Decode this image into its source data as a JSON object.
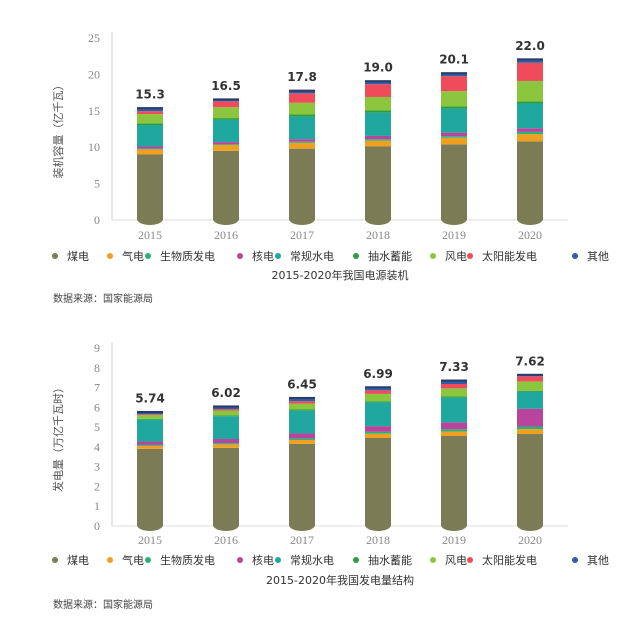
{
  "colors": {
    "煤电": "#7b7b55",
    "气电": "#f0a020",
    "生物质发电": "#27b27a",
    "核电": "#b8449e",
    "常规水电": "#1fa7a0",
    "抽水蓄能": "#2e9e3c",
    "风电": "#8cc63f",
    "太阳能发电": "#ef4b5a",
    "其他": "#2b5fa8"
  },
  "chart_data": [
    {
      "type": "bar",
      "stacked": true,
      "categories": [
        "2015",
        "2016",
        "2017",
        "2018",
        "2019",
        "2020"
      ],
      "ylabel": "装机容量（亿千瓦）",
      "ylim": [
        0,
        25
      ],
      "yticks": [
        0,
        5,
        10,
        15,
        20,
        25
      ],
      "subtitle": "2015-2020年我国电源装机",
      "totals": [
        "15.3",
        "16.5",
        "17.8",
        "19.0",
        "20.1",
        "22.0"
      ],
      "series": [
        {
          "name": "煤电",
          "values": [
            9.0,
            9.5,
            9.8,
            10.1,
            10.4,
            10.8
          ]
        },
        {
          "name": "气电",
          "values": [
            0.7,
            0.8,
            0.8,
            0.8,
            0.9,
            1.0
          ]
        },
        {
          "name": "生物质发电",
          "values": [
            0.1,
            0.1,
            0.15,
            0.2,
            0.2,
            0.3
          ]
        },
        {
          "name": "核电",
          "values": [
            0.3,
            0.3,
            0.35,
            0.45,
            0.5,
            0.5
          ]
        },
        {
          "name": "常规水电",
          "values": [
            2.95,
            3.05,
            3.1,
            3.2,
            3.3,
            3.4
          ]
        },
        {
          "name": "抽水蓄能",
          "values": [
            0.2,
            0.25,
            0.3,
            0.3,
            0.3,
            0.3
          ]
        },
        {
          "name": "风电",
          "values": [
            1.3,
            1.5,
            1.6,
            1.85,
            2.1,
            2.8
          ]
        },
        {
          "name": "太阳能发电",
          "values": [
            0.4,
            0.8,
            1.3,
            1.75,
            2.05,
            2.5
          ]
        },
        {
          "name": "其他",
          "values": [
            0.35,
            0.2,
            0.3,
            0.35,
            0.35,
            0.4
          ]
        }
      ]
    },
    {
      "type": "bar",
      "stacked": true,
      "categories": [
        "2015",
        "2016",
        "2017",
        "2018",
        "2019",
        "2020"
      ],
      "ylabel": "发电量（万亿千瓦时）",
      "ylim": [
        0,
        9
      ],
      "yticks": [
        0,
        1,
        2,
        3,
        4,
        5,
        6,
        7,
        8,
        9
      ],
      "subtitle": "2015-2020年我国发电量结构",
      "totals": [
        "5.74",
        "6.02",
        "6.45",
        "6.99",
        "7.33",
        "7.62"
      ],
      "series": [
        {
          "name": "煤电",
          "values": [
            3.9,
            3.95,
            4.15,
            4.45,
            4.55,
            4.65
          ]
        },
        {
          "name": "气电",
          "values": [
            0.15,
            0.18,
            0.2,
            0.22,
            0.23,
            0.25
          ]
        },
        {
          "name": "生物质发电",
          "values": [
            0.05,
            0.06,
            0.08,
            0.09,
            0.11,
            0.13
          ]
        },
        {
          "name": "核电",
          "values": [
            0.17,
            0.21,
            0.25,
            0.29,
            0.35,
            0.9
          ]
        },
        {
          "name": "常规水电",
          "values": [
            1.1,
            1.15,
            1.15,
            1.2,
            1.25,
            0.85
          ]
        },
        {
          "name": "抽水蓄能",
          "values": [
            0.05,
            0.05,
            0.06,
            0.06,
            0.06,
            0.06
          ]
        },
        {
          "name": "风电",
          "values": [
            0.19,
            0.24,
            0.3,
            0.37,
            0.41,
            0.47
          ]
        },
        {
          "name": "太阳能发电",
          "values": [
            0.04,
            0.07,
            0.12,
            0.18,
            0.22,
            0.26
          ]
        },
        {
          "name": "其他",
          "values": [
            0.09,
            0.11,
            0.14,
            0.13,
            0.15,
            0.05
          ]
        }
      ]
    }
  ],
  "source": "数据来源：国家能源局"
}
